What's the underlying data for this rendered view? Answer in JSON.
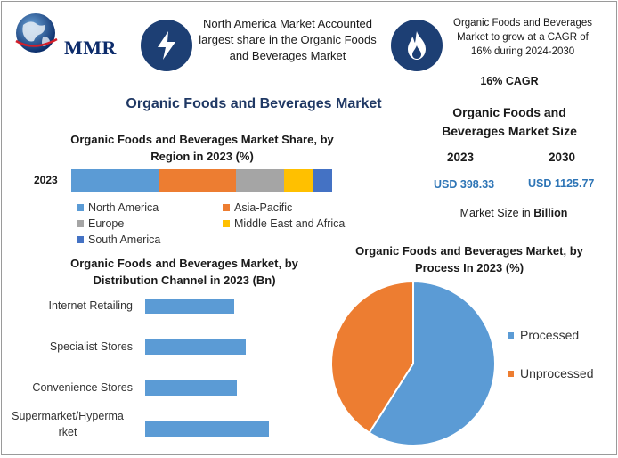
{
  "brand": {
    "logo_text": "MMR"
  },
  "header": {
    "left_text": "North America Market Accounted largest share in the Organic Foods and Beverages Market",
    "right_text": "Organic Foods and Beverages Market to grow at a CAGR of 16% during 2024-2030",
    "left_icon": "lightning-bolt-icon",
    "right_icon": "flame-icon"
  },
  "main_title": "Organic Foods and Beverages Market",
  "stats": {
    "cagr": "16% CAGR",
    "title": "Organic Foods and Beverages Market Size",
    "year_1": "2023",
    "year_2": "2030",
    "value_1": "USD 398.33",
    "value_2": "USD 1125.77",
    "unit_prefix": "Market Size in ",
    "unit_bold": "Billion"
  },
  "colors": {
    "accent_dark": "#1d3f74",
    "blue": "#5b9bd5",
    "orange": "#ed7d31",
    "gray": "#a5a5a5",
    "yellow": "#ffc000",
    "dark_blue": "#4472c4"
  },
  "chart_data": [
    {
      "type": "bar",
      "orientation": "horizontal-stacked",
      "title": "Organic Foods and Beverages Market Share, by Region in 2023 (%)",
      "categories": [
        "2023"
      ],
      "series": [
        {
          "name": "North America",
          "values": [
            33.5
          ],
          "color": "#5b9bd5"
        },
        {
          "name": "Asia-Pacific",
          "values": [
            29.5
          ],
          "color": "#ed7d31"
        },
        {
          "name": "Europe",
          "values": [
            18.5
          ],
          "color": "#a5a5a5"
        },
        {
          "name": "Middle East and Africa",
          "values": [
            11.5
          ],
          "color": "#ffc000"
        },
        {
          "name": "South America",
          "values": [
            7
          ],
          "color": "#4472c4"
        }
      ],
      "legend": "bottom"
    },
    {
      "type": "bar",
      "orientation": "horizontal",
      "title": "Organic Foods and Beverages Market, by Distribution Channel in 2023 (Bn)",
      "categories": [
        "Internet Retailing",
        "Specialist Stores",
        "Convenience Stores",
        "Supermarket/Hyperma rket"
      ],
      "values": [
        100,
        113,
        103,
        139
      ],
      "color": "#5b9bd5"
    },
    {
      "type": "pie",
      "title": "Organic Foods and Beverages Market, by Process In 2023 (%)",
      "categories": [
        "Processed",
        "Unprocessed"
      ],
      "values": [
        59,
        41
      ],
      "colors": [
        "#5b9bd5",
        "#ed7d31"
      ],
      "legend": "right"
    }
  ]
}
